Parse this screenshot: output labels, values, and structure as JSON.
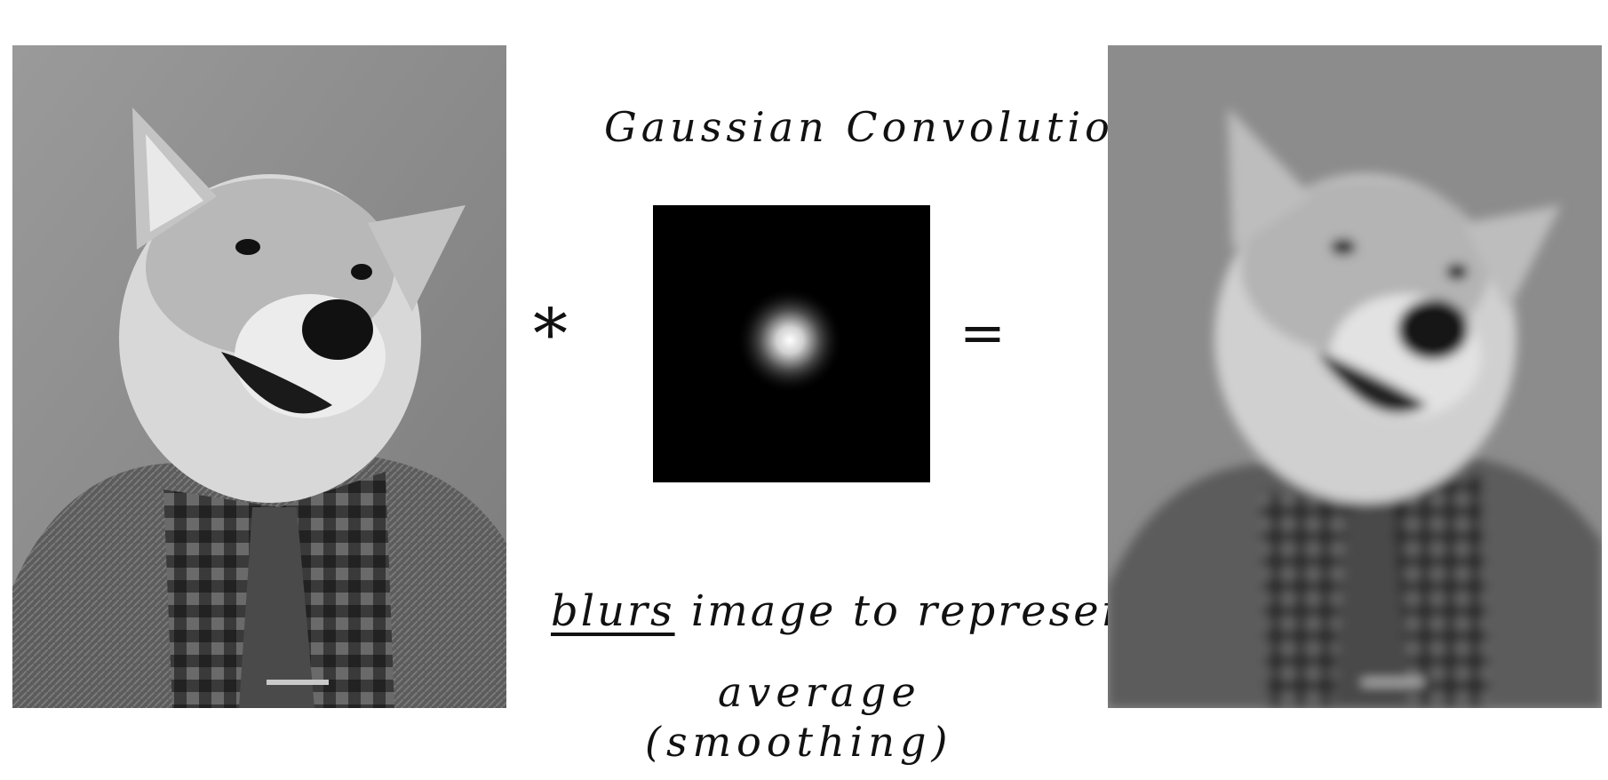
{
  "title": "Gaussian Convolution:",
  "operators": {
    "convolve": "*",
    "equals": "="
  },
  "caption": {
    "word_underlined": "blurs",
    "line1_rest": " image to represent",
    "line2": "average",
    "line3": "(smoothing)"
  },
  "colors": {
    "background": "#ffffff",
    "kernel_background": "#000000",
    "kernel_center": "#ffffff",
    "ink": "#111111"
  },
  "icons": {
    "original_image": "dog-in-suit-photo",
    "blurred_image": "blurred-dog-in-suit-photo",
    "kernel": "gaussian-kernel-blob"
  }
}
